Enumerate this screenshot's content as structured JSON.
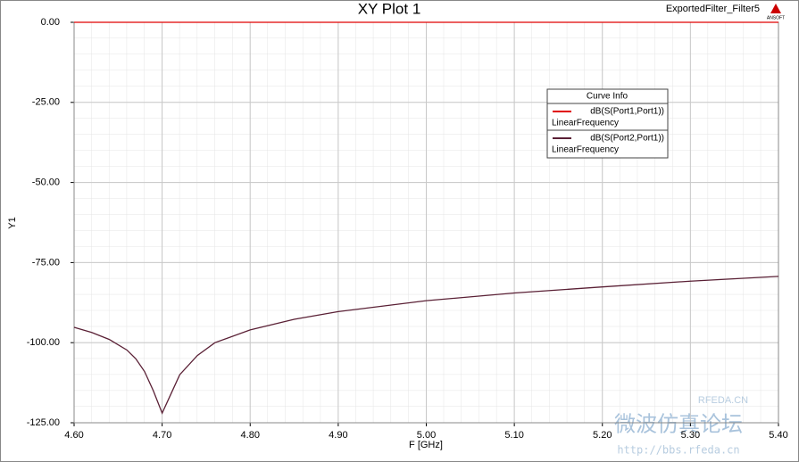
{
  "chart_data": {
    "type": "line",
    "title": "XY Plot 1",
    "design_name": "ExportedFilter_Filter5",
    "logo": "ANSOFT",
    "x_label": "F [GHz]",
    "y_label": "Y1",
    "legend_title": "Curve Info",
    "grid": true,
    "x": [
      4.6,
      4.62,
      4.64,
      4.66,
      4.67,
      4.68,
      4.69,
      4.7,
      4.71,
      4.72,
      4.74,
      4.76,
      4.8,
      4.85,
      4.9,
      5.0,
      5.1,
      5.2,
      5.3,
      5.4
    ],
    "series": [
      {
        "name": "dB(S(Port1,Port1))",
        "sweep": "LinearFrequency",
        "color": "#e00000",
        "values": [
          0,
          0,
          0,
          0,
          0,
          0,
          0,
          0,
          0,
          0,
          0,
          0,
          0,
          0,
          0,
          0,
          0,
          0,
          0,
          0
        ]
      },
      {
        "name": "dB(S(Port2,Port1))",
        "sweep": "LinearFrequency",
        "color": "#5a2035",
        "values": [
          -95.2,
          -96.8,
          -99.0,
          -102.3,
          -105,
          -109,
          -115,
          -122,
          -116,
          -110,
          -104,
          -100,
          -96,
          -92.7,
          -90.3,
          -86.9,
          -84.5,
          -82.6,
          -80.8,
          -79.3
        ]
      }
    ],
    "xlim": [
      4.6,
      5.4
    ],
    "xticks": [
      {
        "value": 4.6,
        "label": "4.60"
      },
      {
        "value": 4.7,
        "label": "4.70"
      },
      {
        "value": 4.8,
        "label": "4.80"
      },
      {
        "value": 4.9,
        "label": "4.90"
      },
      {
        "value": 5.0,
        "label": "5.00"
      },
      {
        "value": 5.1,
        "label": "5.10"
      },
      {
        "value": 5.2,
        "label": "5.20"
      },
      {
        "value": 5.3,
        "label": "5.30"
      },
      {
        "value": 5.4,
        "label": "5.40"
      }
    ],
    "ylim": [
      -125,
      0
    ],
    "yticks": [
      {
        "value": 0,
        "label": "0.00"
      },
      {
        "value": -25,
        "label": "-25.00"
      },
      {
        "value": -50,
        "label": "-50.00"
      },
      {
        "value": -75,
        "label": "-75.00"
      },
      {
        "value": -100,
        "label": "-100.00"
      },
      {
        "value": -125,
        "label": "-125.00"
      }
    ],
    "watermark": {
      "site": "RFEDA.CN",
      "forum": "微波仿真论坛",
      "url": "http://bbs.rfeda.cn"
    }
  }
}
